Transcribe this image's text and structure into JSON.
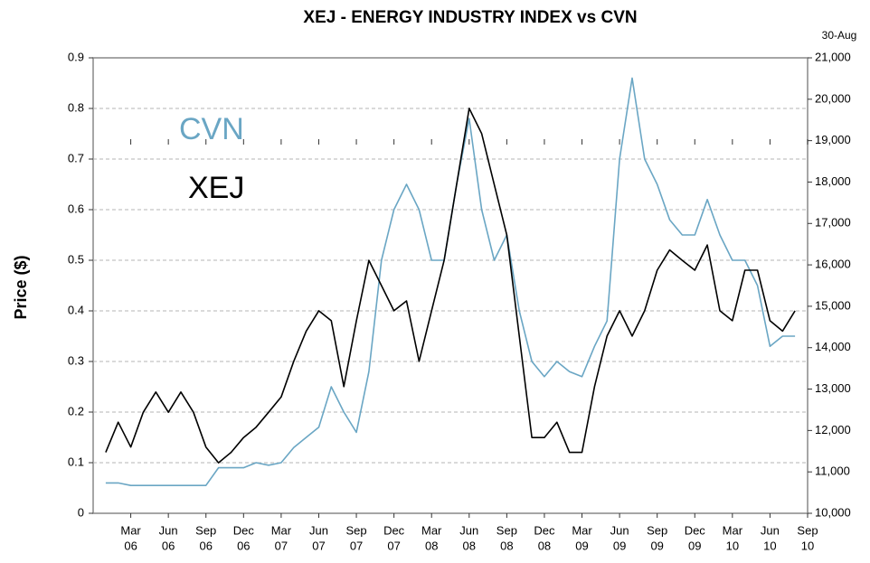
{
  "chart_data": {
    "type": "line",
    "title": "XEJ - ENERGY INDUSTRY INDEX vs CVN",
    "ylabel": "Price ($)",
    "annotation": "30-Aug",
    "x": [
      "2006-01",
      "2006-02",
      "2006-03",
      "2006-04",
      "2006-05",
      "2006-06",
      "2006-07",
      "2006-08",
      "2006-09",
      "2006-10",
      "2006-11",
      "2006-12",
      "2007-01",
      "2007-02",
      "2007-03",
      "2007-04",
      "2007-05",
      "2007-06",
      "2007-07",
      "2007-08",
      "2007-09",
      "2007-10",
      "2007-11",
      "2007-12",
      "2008-01",
      "2008-02",
      "2008-03",
      "2008-04",
      "2008-05",
      "2008-06",
      "2008-07",
      "2008-08",
      "2008-09",
      "2008-10",
      "2008-11",
      "2008-12",
      "2009-01",
      "2009-02",
      "2009-03",
      "2009-04",
      "2009-05",
      "2009-06",
      "2009-07",
      "2009-08",
      "2009-09",
      "2009-10",
      "2009-11",
      "2009-12",
      "2010-01",
      "2010-02",
      "2010-03",
      "2010-04",
      "2010-05",
      "2010-06",
      "2010-07",
      "2010-08"
    ],
    "series": [
      {
        "name": "CVN",
        "color": "#6aa6c4",
        "axis": "y",
        "values": [
          0.06,
          0.06,
          0.055,
          0.055,
          0.055,
          0.055,
          0.055,
          0.055,
          0.055,
          0.09,
          0.09,
          0.09,
          0.1,
          0.095,
          0.1,
          0.13,
          0.15,
          0.17,
          0.25,
          0.2,
          0.16,
          0.28,
          0.5,
          0.6,
          0.65,
          0.6,
          0.5,
          0.5,
          0.65,
          0.78,
          0.6,
          0.5,
          0.55,
          0.4,
          0.3,
          0.27,
          0.3,
          0.28,
          0.27,
          0.33,
          0.38,
          0.7,
          0.86,
          0.7,
          0.65,
          0.58,
          0.55,
          0.55,
          0.62,
          0.55,
          0.5,
          0.5,
          0.45,
          0.33,
          0.35,
          0.35
        ]
      },
      {
        "name": "XEJ",
        "color": "#000000",
        "axis": "y2",
        "values": [
          11470,
          12200,
          11600,
          12440,
          12930,
          12440,
          12930,
          12440,
          11600,
          11220,
          11470,
          11830,
          12080,
          12440,
          12810,
          13670,
          14400,
          14890,
          14650,
          13060,
          14650,
          16110,
          15500,
          14890,
          15130,
          13670,
          14890,
          16110,
          17940,
          19780,
          19170,
          17940,
          16720,
          14280,
          11830,
          11830,
          12200,
          11470,
          11470,
          13060,
          14280,
          14890,
          14280,
          14890,
          15870,
          16360,
          16110,
          15870,
          16480,
          14890,
          14650,
          15870,
          15870,
          14650,
          14400,
          14890
        ]
      }
    ],
    "xlim": [
      "2005-12",
      "2010-09"
    ],
    "xticks": [
      {
        "value": "2006-03",
        "label": [
          "Mar",
          "06"
        ]
      },
      {
        "value": "2006-06",
        "label": [
          "Jun",
          "06"
        ]
      },
      {
        "value": "2006-09",
        "label": [
          "Sep",
          "06"
        ]
      },
      {
        "value": "2006-12",
        "label": [
          "Dec",
          "06"
        ]
      },
      {
        "value": "2007-03",
        "label": [
          "Mar",
          "07"
        ]
      },
      {
        "value": "2007-06",
        "label": [
          "Jun",
          "07"
        ]
      },
      {
        "value": "2007-09",
        "label": [
          "Sep",
          "07"
        ]
      },
      {
        "value": "2007-12",
        "label": [
          "Dec",
          "07"
        ]
      },
      {
        "value": "2008-03",
        "label": [
          "Mar",
          "08"
        ]
      },
      {
        "value": "2008-06",
        "label": [
          "Jun",
          "08"
        ]
      },
      {
        "value": "2008-09",
        "label": [
          "Sep",
          "08"
        ]
      },
      {
        "value": "2008-12",
        "label": [
          "Dec",
          "08"
        ]
      },
      {
        "value": "2009-03",
        "label": [
          "Mar",
          "09"
        ]
      },
      {
        "value": "2009-06",
        "label": [
          "Jun",
          "09"
        ]
      },
      {
        "value": "2009-09",
        "label": [
          "Sep",
          "09"
        ]
      },
      {
        "value": "2009-12",
        "label": [
          "Dec",
          "09"
        ]
      },
      {
        "value": "2010-03",
        "label": [
          "Mar",
          "10"
        ]
      },
      {
        "value": "2010-06",
        "label": [
          "Jun",
          "10"
        ]
      },
      {
        "value": "2010-09",
        "label": [
          "Sep",
          "10"
        ]
      }
    ],
    "ylim": [
      0,
      0.9
    ],
    "yticks": [
      0,
      0.1,
      0.2,
      0.3,
      0.4,
      0.5,
      0.6,
      0.7,
      0.8,
      0.9
    ],
    "y2lim": [
      10000,
      21000
    ],
    "y2ticks": [
      {
        "value": 10000,
        "label": "10,000"
      },
      {
        "value": 11000,
        "label": "11,000"
      },
      {
        "value": 12000,
        "label": "12,000"
      },
      {
        "value": 13000,
        "label": "13,000"
      },
      {
        "value": 14000,
        "label": "14,000"
      },
      {
        "value": 15000,
        "label": "15,000"
      },
      {
        "value": 16000,
        "label": "16,000"
      },
      {
        "value": 17000,
        "label": "17,000"
      },
      {
        "value": 18000,
        "label": "18,000"
      },
      {
        "value": 19000,
        "label": "19,000"
      },
      {
        "value": 20000,
        "label": "20,000"
      },
      {
        "value": 21000,
        "label": "21,000"
      }
    ],
    "grid": true
  }
}
